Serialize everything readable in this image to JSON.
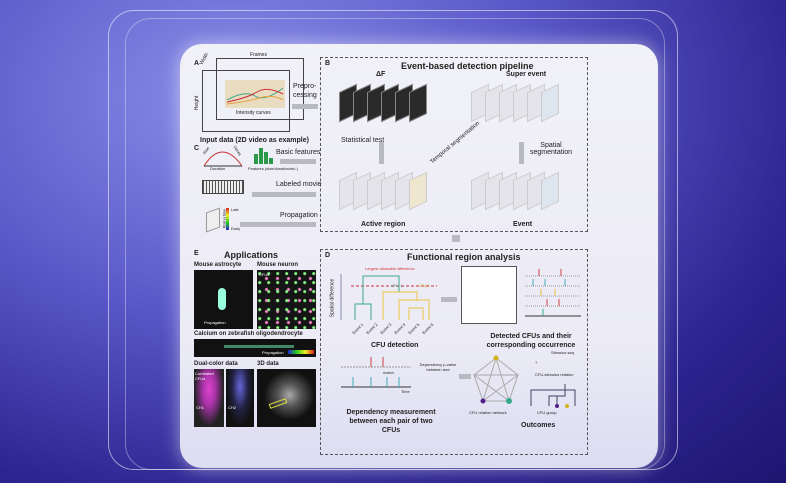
{
  "colors": {
    "background": "#3a30a0",
    "card": "#efeff7",
    "threshold": "#d0303a",
    "cfu1": "#3aa88a",
    "cfu2": "#e8c640",
    "event": "#f0b020"
  },
  "panel_a": {
    "letter": "A",
    "frames": "Frames",
    "width": "Width",
    "height": "Height",
    "curves": "Intensity curves",
    "caption": "Input data (2D video as example)",
    "arrow": "Prepro-\ncessing"
  },
  "panel_b": {
    "letter": "B",
    "title": "Event-based detection pipeline",
    "df": "ΔF",
    "super_event": "Super event",
    "stat_test": "Statistical test",
    "temporal": "Temporal segmentation",
    "spatial": "Spatial segmentation",
    "active_region": "Active region",
    "event": "Event"
  },
  "panel_c": {
    "letter": "C",
    "rise": "Rise",
    "decay": "Decay",
    "duration": "Duration",
    "features": "Features (size/duration/etc.)",
    "basic_features": "Basic features",
    "labeled_movie": "Labeled movie",
    "propagation": "Propagation",
    "late": "Late",
    "early": "Early",
    "rising_time": "Rising time"
  },
  "panel_d": {
    "letter": "D",
    "title": "Functional region analysis",
    "y_label": "Spatial difference",
    "threshold": "Largest allowable difference",
    "cfu1": "CFU 1",
    "cfu2": "CFU 2",
    "events": [
      "Event 1",
      "Event 2",
      "Event 3",
      "Event 4",
      "Event 5",
      "Event 6"
    ],
    "cfu_detection": "CFU detection",
    "detected": "Detected CFUs and their corresponding occurrence",
    "match": "match",
    "time": "Time",
    "dependency": "Dependency p-value between and",
    "dep_caption": "Dependency measurement between each pair of two CFUs",
    "network": "CFU relation network",
    "stimulus_seq": "Stimulus seq",
    "stim_rel": "CFU-stimulus relation",
    "group": "CFU group",
    "outcomes": "Outcomes",
    "q": "?"
  },
  "panel_e": {
    "letter": "E",
    "title": "Applications",
    "astro": "Mouse astrocyte",
    "neuron": "Mouse neuron",
    "cfus": "CFUs",
    "propagation": "Propagation",
    "zebrafish": "Calcium on zebrafish oligodendrocyte",
    "dual": "Dual-color data",
    "data3d": "3D data",
    "correlated": "Correlated CFUs",
    "ch1": "CH1",
    "ch2": "CH2"
  }
}
